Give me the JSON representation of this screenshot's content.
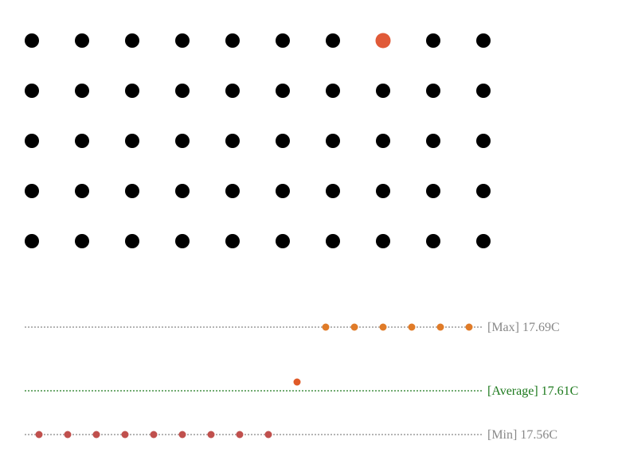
{
  "chart_data": {
    "type": "scatter",
    "title": "",
    "dot_grid": {
      "rows": 5,
      "cols": 10,
      "highlighted": [
        {
          "row": 1,
          "col": 8
        }
      ],
      "dot_color": "#000000",
      "highlight_color": "#e05a38"
    },
    "references": [
      {
        "key": "max",
        "label": "[Max] 17.69C",
        "value": 17.69,
        "color": "#888888"
      },
      {
        "key": "average",
        "label": "[Average] 17.61C",
        "value": 17.61,
        "color": "#1e7a1e"
      },
      {
        "key": "min",
        "label": "[Min] 17.56C",
        "value": 17.56,
        "color": "#888888"
      }
    ],
    "series": [
      {
        "values": [
          17.56,
          17.56,
          17.56,
          17.56,
          17.56,
          17.56,
          17.56,
          17.56,
          17.56
        ],
        "color": "#c0504d"
      },
      {
        "values": [
          17.625
        ],
        "color": "#e05a28"
      },
      {
        "values": [
          17.69,
          17.69,
          17.69,
          17.69,
          17.69,
          17.69
        ],
        "color": "#e07b28"
      }
    ]
  }
}
